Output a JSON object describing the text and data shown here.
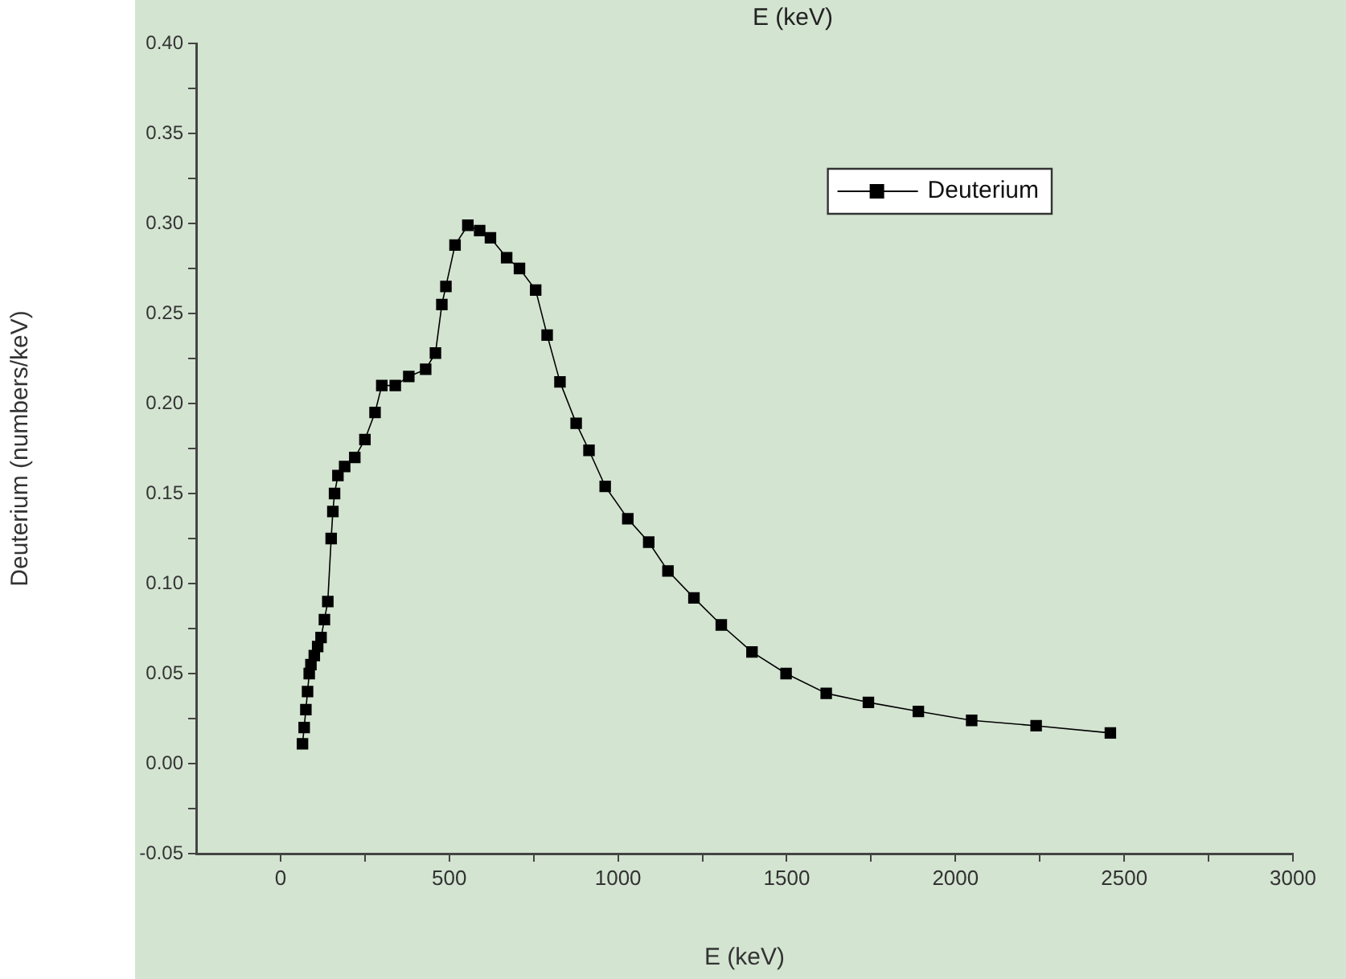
{
  "chart_data": {
    "type": "line",
    "title": "E (keV)",
    "xlabel": "E (keV)",
    "ylabel": "Deuterium (numbers/keV)",
    "series": [
      {
        "name": "Deuterium",
        "color": "#000000",
        "x": [
          65,
          70,
          75,
          80,
          85,
          90,
          100,
          110,
          120,
          130,
          140,
          150,
          155,
          160,
          170,
          190,
          220,
          250,
          280,
          300,
          340,
          380,
          430,
          459,
          478,
          490,
          517,
          555,
          590,
          622,
          670,
          708,
          756,
          790,
          828,
          876,
          914,
          962,
          1029,
          1091,
          1148,
          1225,
          1306,
          1397,
          1498,
          1617,
          1742,
          1890,
          2048,
          2239,
          2459
        ],
        "values": [
          0.011,
          0.02,
          0.03,
          0.04,
          0.05,
          0.055,
          0.06,
          0.065,
          0.07,
          0.08,
          0.09,
          0.125,
          0.14,
          0.15,
          0.16,
          0.165,
          0.17,
          0.18,
          0.195,
          0.21,
          0.21,
          0.215,
          0.219,
          0.228,
          0.255,
          0.265,
          0.288,
          0.299,
          0.296,
          0.292,
          0.281,
          0.275,
          0.263,
          0.238,
          0.212,
          0.189,
          0.174,
          0.154,
          0.136,
          0.123,
          0.107,
          0.092,
          0.077,
          0.062,
          0.05,
          0.039,
          0.034,
          0.029,
          0.024,
          0.021,
          0.017
        ]
      }
    ],
    "xlim": [
      -250,
      3000
    ],
    "xticks": [
      0,
      500,
      1000,
      1500,
      2000,
      2500,
      3000
    ],
    "ylim": [
      -0.05,
      0.4
    ],
    "yticks": [
      {
        "value": -0.05,
        "label": "-0.05"
      },
      {
        "value": 0,
        "label": "0.00"
      },
      {
        "value": 0.05,
        "label": "0.05"
      },
      {
        "value": 0.1,
        "label": "0.10"
      },
      {
        "value": 0.15,
        "label": "0.15"
      },
      {
        "value": 0.2,
        "label": "0.20"
      },
      {
        "value": 0.25,
        "label": "0.25"
      },
      {
        "value": 0.3,
        "label": "0.30"
      },
      {
        "value": 0.35,
        "label": "0.35"
      },
      {
        "value": 0.4,
        "label": "0.40"
      }
    ],
    "grid": false,
    "legend": "top right",
    "marker": "square",
    "line_style": "solid"
  }
}
